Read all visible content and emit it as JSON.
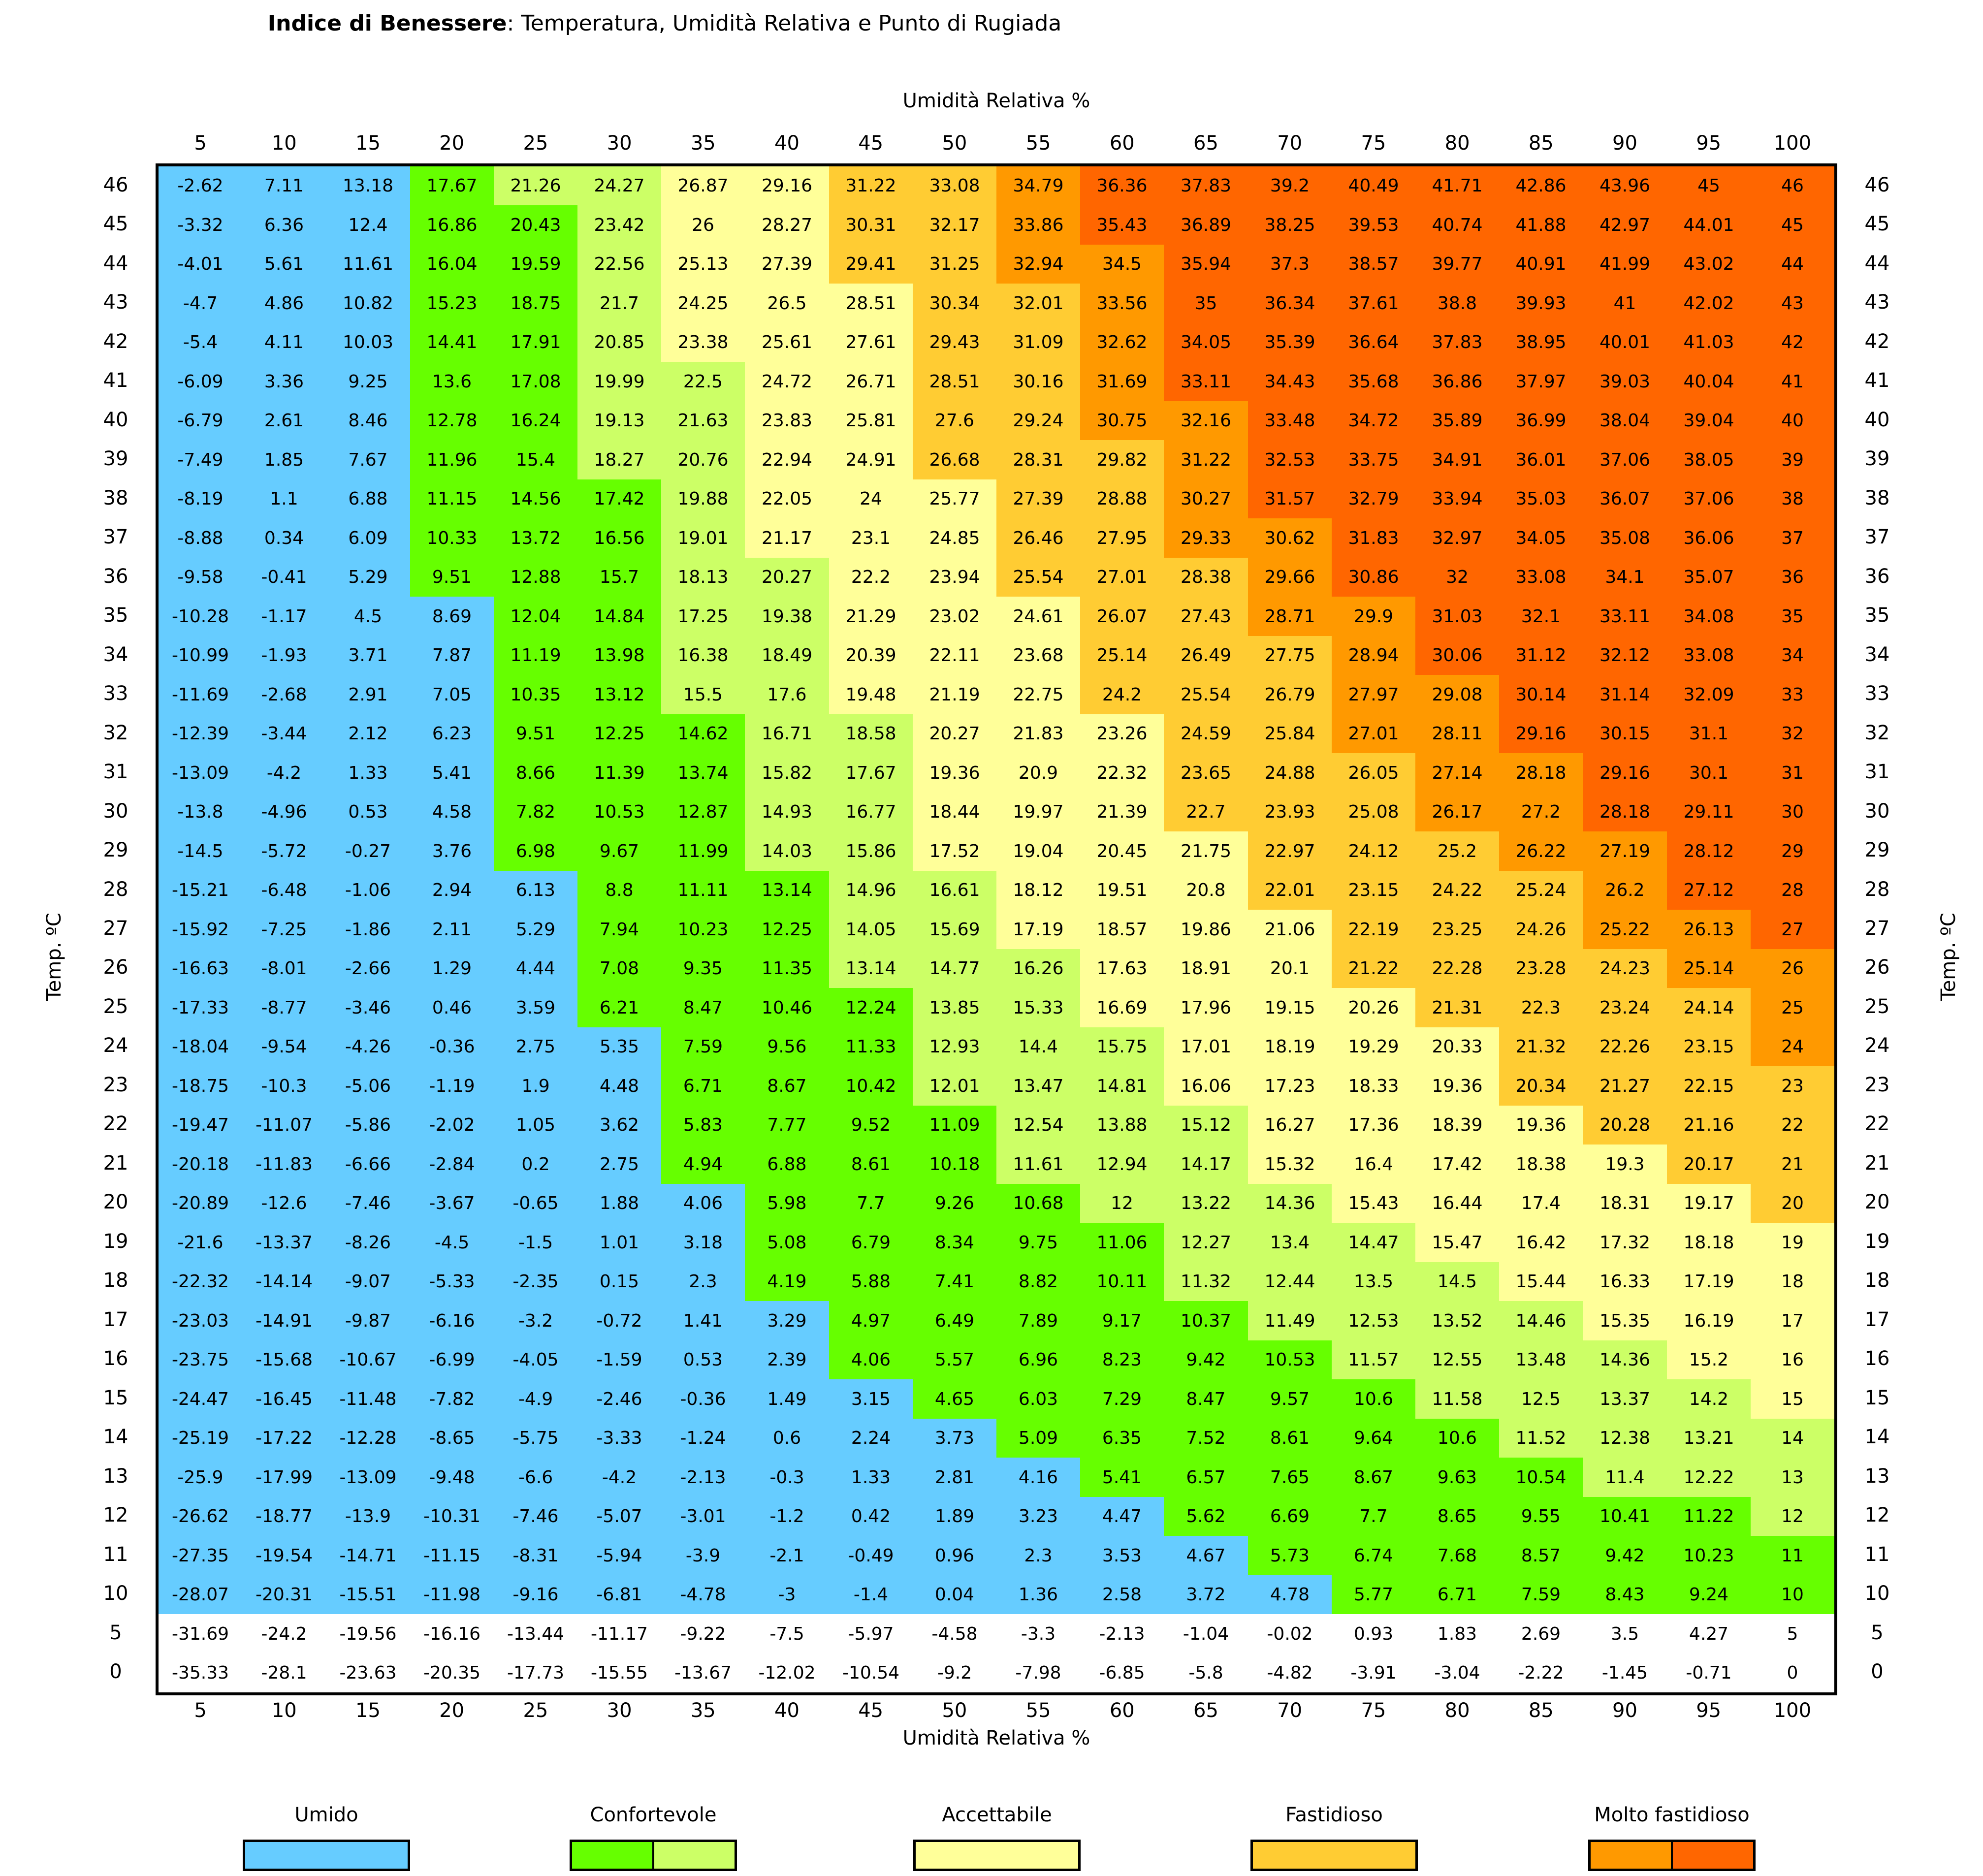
{
  "title": {
    "bold": "Indice di Benessere",
    "rest": ": Temperatura, Umidità Relativa e Punto di Rugiada"
  },
  "colors": {
    "umido": "#66ccff",
    "conf_strong": "#66ff00",
    "conf_light": "#ccff66",
    "accettabile": "#ffff99",
    "fastidioso": "#ffcc33",
    "molto1": "#ff9900",
    "molto2": "#ff6600"
  },
  "chart_data": {
    "type": "heatmap",
    "title": "Indice di Benessere: Temperatura, Umidità Relativa e Punto di Rugiada",
    "xlabel": "Umidità Relativa %",
    "ylabel": "Temp. ºC",
    "x": [
      5,
      10,
      15,
      20,
      25,
      30,
      35,
      40,
      45,
      50,
      55,
      60,
      65,
      70,
      75,
      80,
      85,
      90,
      95,
      100
    ],
    "y": [
      46,
      45,
      44,
      43,
      42,
      41,
      40,
      39,
      38,
      37,
      36,
      35,
      34,
      33,
      32,
      31,
      30,
      29,
      28,
      27,
      26,
      25,
      24,
      23,
      22,
      21,
      20,
      19,
      18,
      17,
      16,
      15,
      14,
      13,
      12,
      11,
      10,
      5,
      0
    ],
    "values": [
      [
        "-2.62",
        "7.11",
        "13.18",
        "17.67",
        "21.26",
        "24.27",
        "26.87",
        "29.16",
        "31.22",
        "33.08",
        "34.79",
        "36.36",
        "37.83",
        "39.2",
        "40.49",
        "41.71",
        "42.86",
        "43.96",
        "45",
        "46"
      ],
      [
        "-3.32",
        "6.36",
        "12.4",
        "16.86",
        "20.43",
        "23.42",
        "26",
        "28.27",
        "30.31",
        "32.17",
        "33.86",
        "35.43",
        "36.89",
        "38.25",
        "39.53",
        "40.74",
        "41.88",
        "42.97",
        "44.01",
        "45"
      ],
      [
        "-4.01",
        "5.61",
        "11.61",
        "16.04",
        "19.59",
        "22.56",
        "25.13",
        "27.39",
        "29.41",
        "31.25",
        "32.94",
        "34.5",
        "35.94",
        "37.3",
        "38.57",
        "39.77",
        "40.91",
        "41.99",
        "43.02",
        "44"
      ],
      [
        "-4.7",
        "4.86",
        "10.82",
        "15.23",
        "18.75",
        "21.7",
        "24.25",
        "26.5",
        "28.51",
        "30.34",
        "32.01",
        "33.56",
        "35",
        "36.34",
        "37.61",
        "38.8",
        "39.93",
        "41",
        "42.02",
        "43"
      ],
      [
        "-5.4",
        "4.11",
        "10.03",
        "14.41",
        "17.91",
        "20.85",
        "23.38",
        "25.61",
        "27.61",
        "29.43",
        "31.09",
        "32.62",
        "34.05",
        "35.39",
        "36.64",
        "37.83",
        "38.95",
        "40.01",
        "41.03",
        "42"
      ],
      [
        "-6.09",
        "3.36",
        "9.25",
        "13.6",
        "17.08",
        "19.99",
        "22.5",
        "24.72",
        "26.71",
        "28.51",
        "30.16",
        "31.69",
        "33.11",
        "34.43",
        "35.68",
        "36.86",
        "37.97",
        "39.03",
        "40.04",
        "41"
      ],
      [
        "-6.79",
        "2.61",
        "8.46",
        "12.78",
        "16.24",
        "19.13",
        "21.63",
        "23.83",
        "25.81",
        "27.6",
        "29.24",
        "30.75",
        "32.16",
        "33.48",
        "34.72",
        "35.89",
        "36.99",
        "38.04",
        "39.04",
        "40"
      ],
      [
        "-7.49",
        "1.85",
        "7.67",
        "11.96",
        "15.4",
        "18.27",
        "20.76",
        "22.94",
        "24.91",
        "26.68",
        "28.31",
        "29.82",
        "31.22",
        "32.53",
        "33.75",
        "34.91",
        "36.01",
        "37.06",
        "38.05",
        "39"
      ],
      [
        "-8.19",
        "1.1",
        "6.88",
        "11.15",
        "14.56",
        "17.42",
        "19.88",
        "22.05",
        "24",
        "25.77",
        "27.39",
        "28.88",
        "30.27",
        "31.57",
        "32.79",
        "33.94",
        "35.03",
        "36.07",
        "37.06",
        "38"
      ],
      [
        "-8.88",
        "0.34",
        "6.09",
        "10.33",
        "13.72",
        "16.56",
        "19.01",
        "21.17",
        "23.1",
        "24.85",
        "26.46",
        "27.95",
        "29.33",
        "30.62",
        "31.83",
        "32.97",
        "34.05",
        "35.08",
        "36.06",
        "37"
      ],
      [
        "-9.58",
        "-0.41",
        "5.29",
        "9.51",
        "12.88",
        "15.7",
        "18.13",
        "20.27",
        "22.2",
        "23.94",
        "25.54",
        "27.01",
        "28.38",
        "29.66",
        "30.86",
        "32",
        "33.08",
        "34.1",
        "35.07",
        "36"
      ],
      [
        "-10.28",
        "-1.17",
        "4.5",
        "8.69",
        "12.04",
        "14.84",
        "17.25",
        "19.38",
        "21.29",
        "23.02",
        "24.61",
        "26.07",
        "27.43",
        "28.71",
        "29.9",
        "31.03",
        "32.1",
        "33.11",
        "34.08",
        "35"
      ],
      [
        "-10.99",
        "-1.93",
        "3.71",
        "7.87",
        "11.19",
        "13.98",
        "16.38",
        "18.49",
        "20.39",
        "22.11",
        "23.68",
        "25.14",
        "26.49",
        "27.75",
        "28.94",
        "30.06",
        "31.12",
        "32.12",
        "33.08",
        "34"
      ],
      [
        "-11.69",
        "-2.68",
        "2.91",
        "7.05",
        "10.35",
        "13.12",
        "15.5",
        "17.6",
        "19.48",
        "21.19",
        "22.75",
        "24.2",
        "25.54",
        "26.79",
        "27.97",
        "29.08",
        "30.14",
        "31.14",
        "32.09",
        "33"
      ],
      [
        "-12.39",
        "-3.44",
        "2.12",
        "6.23",
        "9.51",
        "12.25",
        "14.62",
        "16.71",
        "18.58",
        "20.27",
        "21.83",
        "23.26",
        "24.59",
        "25.84",
        "27.01",
        "28.11",
        "29.16",
        "30.15",
        "31.1",
        "32"
      ],
      [
        "-13.09",
        "-4.2",
        "1.33",
        "5.41",
        "8.66",
        "11.39",
        "13.74",
        "15.82",
        "17.67",
        "19.36",
        "20.9",
        "22.32",
        "23.65",
        "24.88",
        "26.05",
        "27.14",
        "28.18",
        "29.16",
        "30.1",
        "31"
      ],
      [
        "-13.8",
        "-4.96",
        "0.53",
        "4.58",
        "7.82",
        "10.53",
        "12.87",
        "14.93",
        "16.77",
        "18.44",
        "19.97",
        "21.39",
        "22.7",
        "23.93",
        "25.08",
        "26.17",
        "27.2",
        "28.18",
        "29.11",
        "30"
      ],
      [
        "-14.5",
        "-5.72",
        "-0.27",
        "3.76",
        "6.98",
        "9.67",
        "11.99",
        "14.03",
        "15.86",
        "17.52",
        "19.04",
        "20.45",
        "21.75",
        "22.97",
        "24.12",
        "25.2",
        "26.22",
        "27.19",
        "28.12",
        "29"
      ],
      [
        "-15.21",
        "-6.48",
        "-1.06",
        "2.94",
        "6.13",
        "8.8",
        "11.11",
        "13.14",
        "14.96",
        "16.61",
        "18.12",
        "19.51",
        "20.8",
        "22.01",
        "23.15",
        "24.22",
        "25.24",
        "26.2",
        "27.12",
        "28"
      ],
      [
        "-15.92",
        "-7.25",
        "-1.86",
        "2.11",
        "5.29",
        "7.94",
        "10.23",
        "12.25",
        "14.05",
        "15.69",
        "17.19",
        "18.57",
        "19.86",
        "21.06",
        "22.19",
        "23.25",
        "24.26",
        "25.22",
        "26.13",
        "27"
      ],
      [
        "-16.63",
        "-8.01",
        "-2.66",
        "1.29",
        "4.44",
        "7.08",
        "9.35",
        "11.35",
        "13.14",
        "14.77",
        "16.26",
        "17.63",
        "18.91",
        "20.1",
        "21.22",
        "22.28",
        "23.28",
        "24.23",
        "25.14",
        "26"
      ],
      [
        "-17.33",
        "-8.77",
        "-3.46",
        "0.46",
        "3.59",
        "6.21",
        "8.47",
        "10.46",
        "12.24",
        "13.85",
        "15.33",
        "16.69",
        "17.96",
        "19.15",
        "20.26",
        "21.31",
        "22.3",
        "23.24",
        "24.14",
        "25"
      ],
      [
        "-18.04",
        "-9.54",
        "-4.26",
        "-0.36",
        "2.75",
        "5.35",
        "7.59",
        "9.56",
        "11.33",
        "12.93",
        "14.4",
        "15.75",
        "17.01",
        "18.19",
        "19.29",
        "20.33",
        "21.32",
        "22.26",
        "23.15",
        "24"
      ],
      [
        "-18.75",
        "-10.3",
        "-5.06",
        "-1.19",
        "1.9",
        "4.48",
        "6.71",
        "8.67",
        "10.42",
        "12.01",
        "13.47",
        "14.81",
        "16.06",
        "17.23",
        "18.33",
        "19.36",
        "20.34",
        "21.27",
        "22.15",
        "23"
      ],
      [
        "-19.47",
        "-11.07",
        "-5.86",
        "-2.02",
        "1.05",
        "3.62",
        "5.83",
        "7.77",
        "9.52",
        "11.09",
        "12.54",
        "13.88",
        "15.12",
        "16.27",
        "17.36",
        "18.39",
        "19.36",
        "20.28",
        "21.16",
        "22"
      ],
      [
        "-20.18",
        "-11.83",
        "-6.66",
        "-2.84",
        "0.2",
        "2.75",
        "4.94",
        "6.88",
        "8.61",
        "10.18",
        "11.61",
        "12.94",
        "14.17",
        "15.32",
        "16.4",
        "17.42",
        "18.38",
        "19.3",
        "20.17",
        "21"
      ],
      [
        "-20.89",
        "-12.6",
        "-7.46",
        "-3.67",
        "-0.65",
        "1.88",
        "4.06",
        "5.98",
        "7.7",
        "9.26",
        "10.68",
        "12",
        "13.22",
        "14.36",
        "15.43",
        "16.44",
        "17.4",
        "18.31",
        "19.17",
        "20"
      ],
      [
        "-21.6",
        "-13.37",
        "-8.26",
        "-4.5",
        "-1.5",
        "1.01",
        "3.18",
        "5.08",
        "6.79",
        "8.34",
        "9.75",
        "11.06",
        "12.27",
        "13.4",
        "14.47",
        "15.47",
        "16.42",
        "17.32",
        "18.18",
        "19"
      ],
      [
        "-22.32",
        "-14.14",
        "-9.07",
        "-5.33",
        "-2.35",
        "0.15",
        "2.3",
        "4.19",
        "5.88",
        "7.41",
        "8.82",
        "10.11",
        "11.32",
        "12.44",
        "13.5",
        "14.5",
        "15.44",
        "16.33",
        "17.19",
        "18"
      ],
      [
        "-23.03",
        "-14.91",
        "-9.87",
        "-6.16",
        "-3.2",
        "-0.72",
        "1.41",
        "3.29",
        "4.97",
        "6.49",
        "7.89",
        "9.17",
        "10.37",
        "11.49",
        "12.53",
        "13.52",
        "14.46",
        "15.35",
        "16.19",
        "17"
      ],
      [
        "-23.75",
        "-15.68",
        "-10.67",
        "-6.99",
        "-4.05",
        "-1.59",
        "0.53",
        "2.39",
        "4.06",
        "5.57",
        "6.96",
        "8.23",
        "9.42",
        "10.53",
        "11.57",
        "12.55",
        "13.48",
        "14.36",
        "15.2",
        "16"
      ],
      [
        "-24.47",
        "-16.45",
        "-11.48",
        "-7.82",
        "-4.9",
        "-2.46",
        "-0.36",
        "1.49",
        "3.15",
        "4.65",
        "6.03",
        "7.29",
        "8.47",
        "9.57",
        "10.6",
        "11.58",
        "12.5",
        "13.37",
        "14.2",
        "15"
      ],
      [
        "-25.19",
        "-17.22",
        "-12.28",
        "-8.65",
        "-5.75",
        "-3.33",
        "-1.24",
        "0.6",
        "2.24",
        "3.73",
        "5.09",
        "6.35",
        "7.52",
        "8.61",
        "9.64",
        "10.6",
        "11.52",
        "12.38",
        "13.21",
        "14"
      ],
      [
        "-25.9",
        "-17.99",
        "-13.09",
        "-9.48",
        "-6.6",
        "-4.2",
        "-2.13",
        "-0.3",
        "1.33",
        "2.81",
        "4.16",
        "5.41",
        "6.57",
        "7.65",
        "8.67",
        "9.63",
        "10.54",
        "11.4",
        "12.22",
        "13"
      ],
      [
        "-26.62",
        "-18.77",
        "-13.9",
        "-10.31",
        "-7.46",
        "-5.07",
        "-3.01",
        "-1.2",
        "0.42",
        "1.89",
        "3.23",
        "4.47",
        "5.62",
        "6.69",
        "7.7",
        "8.65",
        "9.55",
        "10.41",
        "11.22",
        "12"
      ],
      [
        "-27.35",
        "-19.54",
        "-14.71",
        "-11.15",
        "-8.31",
        "-5.94",
        "-3.9",
        "-2.1",
        "-0.49",
        "0.96",
        "2.3",
        "3.53",
        "4.67",
        "5.73",
        "6.74",
        "7.68",
        "8.57",
        "9.42",
        "10.23",
        "11"
      ],
      [
        "-28.07",
        "-20.31",
        "-15.51",
        "-11.98",
        "-9.16",
        "-6.81",
        "-4.78",
        "-3",
        "-1.4",
        "0.04",
        "1.36",
        "2.58",
        "3.72",
        "4.78",
        "5.77",
        "6.71",
        "7.59",
        "8.43",
        "9.24",
        "10"
      ],
      [
        "-31.69",
        "-24.2",
        "-19.56",
        "-16.16",
        "-13.44",
        "-11.17",
        "-9.22",
        "-7.5",
        "-5.97",
        "-4.58",
        "-3.3",
        "-2.13",
        "-1.04",
        "-0.02",
        "0.93",
        "1.83",
        "2.69",
        "3.5",
        "4.27",
        "5"
      ],
      [
        "-35.33",
        "-28.1",
        "-23.63",
        "-20.35",
        "-17.73",
        "-15.55",
        "-13.67",
        "-12.02",
        "-10.54",
        "-9.2",
        "-7.98",
        "-6.85",
        "-5.8",
        "-4.82",
        "-3.91",
        "-3.04",
        "-2.22",
        "-1.45",
        "-0.71",
        "0"
      ]
    ],
    "legend": [
      {
        "label": "Umido",
        "colors": [
          "#66ccff"
        ]
      },
      {
        "label": "Confortevole",
        "colors": [
          "#66ff00",
          "#ccff66"
        ]
      },
      {
        "label": "Accettabile",
        "colors": [
          "#ffff99"
        ]
      },
      {
        "label": "Fastidioso",
        "colors": [
          "#ffcc33"
        ]
      },
      {
        "label": "Molto fastidioso",
        "colors": [
          "#ff9900",
          "#ff6600"
        ]
      }
    ],
    "legend_position": "bottom"
  }
}
